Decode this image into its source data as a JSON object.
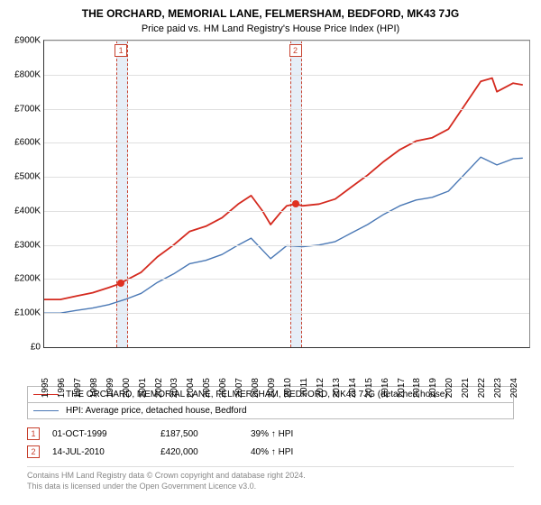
{
  "title": "THE ORCHARD, MEMORIAL LANE, FELMERSHAM, BEDFORD, MK43 7JG",
  "subtitle": "Price paid vs. HM Land Registry's House Price Index (HPI)",
  "chart": {
    "type": "line",
    "background_color": "#ffffff",
    "grid_color": "#e0e0e0",
    "axis_color": "#333333",
    "x_min": 1995,
    "x_max": 2025,
    "y_min": 0,
    "y_max": 900000,
    "y_tick_step": 100000,
    "y_tick_prefix": "£",
    "y_tick_suffix": "K",
    "y_ticks": [
      "£0",
      "£100K",
      "£200K",
      "£300K",
      "£400K",
      "£500K",
      "£600K",
      "£700K",
      "£800K",
      "£900K"
    ],
    "x_ticks": [
      "1995",
      "1996",
      "1997",
      "1998",
      "1999",
      "2000",
      "2001",
      "2002",
      "2003",
      "2004",
      "2005",
      "2006",
      "2007",
      "2008",
      "2009",
      "2010",
      "2011",
      "2012",
      "2013",
      "2014",
      "2015",
      "2016",
      "2017",
      "2018",
      "2019",
      "2020",
      "2021",
      "2022",
      "2023",
      "2024"
    ],
    "label_fontsize": 10,
    "marker_band_color": "#e6eef7",
    "marker_dash_color": "#c7402d",
    "series": [
      {
        "name": "property",
        "label": "THE ORCHARD, MEMORIAL LANE, FELMERSHAM, BEDFORD, MK43 7JG (detached house)",
        "color": "#d42a1f",
        "line_width": 1.8,
        "points": [
          [
            1995,
            140000
          ],
          [
            1996,
            140000
          ],
          [
            1997,
            150000
          ],
          [
            1998,
            160000
          ],
          [
            1999,
            175000
          ],
          [
            1999.75,
            187500
          ],
          [
            2000,
            195000
          ],
          [
            2001,
            220000
          ],
          [
            2002,
            265000
          ],
          [
            2003,
            300000
          ],
          [
            2004,
            340000
          ],
          [
            2005,
            355000
          ],
          [
            2006,
            380000
          ],
          [
            2007,
            420000
          ],
          [
            2007.8,
            445000
          ],
          [
            2008.5,
            400000
          ],
          [
            2009,
            360000
          ],
          [
            2009.7,
            400000
          ],
          [
            2010,
            415000
          ],
          [
            2010.53,
            420000
          ],
          [
            2011,
            415000
          ],
          [
            2012,
            420000
          ],
          [
            2013,
            435000
          ],
          [
            2014,
            470000
          ],
          [
            2015,
            505000
          ],
          [
            2016,
            545000
          ],
          [
            2017,
            580000
          ],
          [
            2018,
            605000
          ],
          [
            2019,
            615000
          ],
          [
            2020,
            640000
          ],
          [
            2021,
            710000
          ],
          [
            2022,
            780000
          ],
          [
            2022.7,
            790000
          ],
          [
            2023,
            750000
          ],
          [
            2024,
            775000
          ],
          [
            2024.6,
            770000
          ]
        ]
      },
      {
        "name": "hpi",
        "label": "HPI: Average price, detached house, Bedford",
        "color": "#4a78b5",
        "line_width": 1.4,
        "points": [
          [
            1995,
            100000
          ],
          [
            1996,
            100000
          ],
          [
            1997,
            108000
          ],
          [
            1998,
            115000
          ],
          [
            1999,
            125000
          ],
          [
            2000,
            140000
          ],
          [
            2001,
            158000
          ],
          [
            2002,
            190000
          ],
          [
            2003,
            215000
          ],
          [
            2004,
            245000
          ],
          [
            2005,
            255000
          ],
          [
            2006,
            272000
          ],
          [
            2007,
            300000
          ],
          [
            2007.8,
            320000
          ],
          [
            2008.5,
            285000
          ],
          [
            2009,
            260000
          ],
          [
            2010,
            298000
          ],
          [
            2011,
            295000
          ],
          [
            2012,
            300000
          ],
          [
            2013,
            310000
          ],
          [
            2014,
            335000
          ],
          [
            2015,
            360000
          ],
          [
            2016,
            390000
          ],
          [
            2017,
            415000
          ],
          [
            2018,
            432000
          ],
          [
            2019,
            440000
          ],
          [
            2020,
            458000
          ],
          [
            2021,
            508000
          ],
          [
            2022,
            558000
          ],
          [
            2023,
            535000
          ],
          [
            2024,
            553000
          ],
          [
            2024.6,
            555000
          ]
        ]
      }
    ],
    "markers": [
      {
        "id": "1",
        "x": 1999.75,
        "y": 187500,
        "band_width_years": 0.6
      },
      {
        "id": "2",
        "x": 2010.53,
        "y": 420000,
        "band_width_years": 0.6
      }
    ]
  },
  "legend": {
    "items": [
      {
        "color": "#d42a1f",
        "width": 2,
        "label_ref": "chart.series.0.label"
      },
      {
        "color": "#4a78b5",
        "width": 1.5,
        "label_ref": "chart.series.1.label"
      }
    ]
  },
  "sales": [
    {
      "marker": "1",
      "date": "01-OCT-1999",
      "price": "£187,500",
      "hpi_diff": "39% ↑ HPI"
    },
    {
      "marker": "2",
      "date": "14-JUL-2010",
      "price": "£420,000",
      "hpi_diff": "40% ↑ HPI"
    }
  ],
  "footer": {
    "line1": "Contains HM Land Registry data © Crown copyright and database right 2024.",
    "line2": "This data is licensed under the Open Government Licence v3.0."
  }
}
